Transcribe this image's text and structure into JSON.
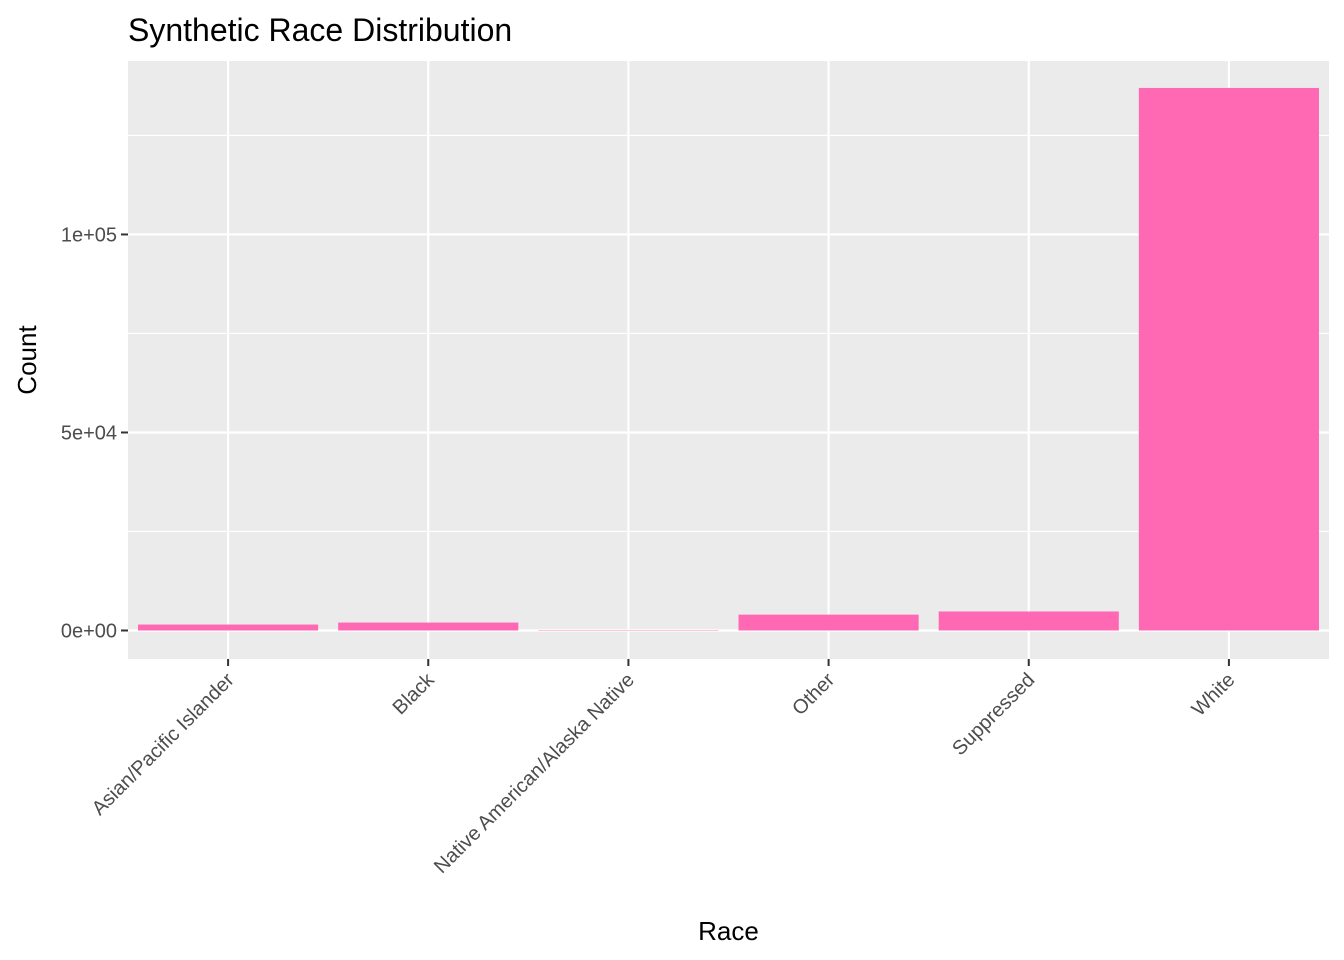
{
  "chart_data": {
    "type": "bar",
    "title": "Synthetic Race Distribution",
    "xlabel": "Race",
    "ylabel": "Count",
    "categories": [
      "Asian/Pacific Islander",
      "Black",
      "Native American/Alaska Native",
      "Other",
      "Suppressed",
      "White"
    ],
    "values": [
      1500,
      2000,
      100,
      4000,
      4800,
      137000
    ],
    "ylim": [
      -7200,
      143800
    ],
    "yticks": [
      0,
      50000,
      100000
    ],
    "ytick_labels": [
      "0e+00",
      "5e+04",
      "1e+05"
    ],
    "grid": true,
    "legend": "none",
    "colors": {
      "bar": "#ff69b4",
      "panel": "#ebebeb",
      "grid": "#ffffff",
      "tick_text": "#4d4d4d",
      "tick_mark": "#333333"
    }
  }
}
